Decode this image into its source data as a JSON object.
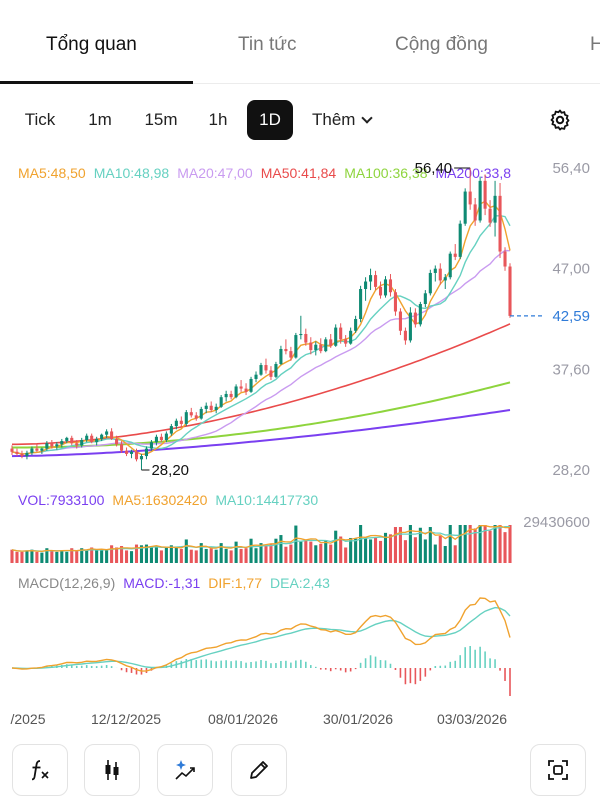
{
  "tabs": [
    {
      "label": "Tổng quan",
      "active": true
    },
    {
      "label": "Tin tức",
      "active": false
    },
    {
      "label": "Cộng đồng",
      "active": false
    },
    {
      "label": "H",
      "active": false
    }
  ],
  "timeframes": [
    {
      "label": "Tick",
      "active": false
    },
    {
      "label": "1m",
      "active": false
    },
    {
      "label": "15m",
      "active": false
    },
    {
      "label": "1h",
      "active": false
    },
    {
      "label": "1D",
      "active": true
    }
  ],
  "more_label": "Thêm",
  "icons": {
    "settings": "gear-icon",
    "tools": [
      "function-icon",
      "candlestick-icon",
      "sparkle-chart-icon",
      "pencil-icon",
      "fullscreen-icon"
    ]
  },
  "colors": {
    "up": "#0e8a73",
    "down": "#e8565a",
    "ma5": "#f0a22e",
    "ma10": "#66d1c1",
    "ma20": "#c99bf0",
    "ma50": "#e94b4b",
    "ma100": "#8ed43d",
    "ma200": "#7a3ff0",
    "last_price": "#2f7bd8"
  },
  "main_legend": [
    {
      "label": "MA5:48,50",
      "color": "#f0a22e"
    },
    {
      "label": "MA10:48,98",
      "color": "#66d1c1"
    },
    {
      "label": "MA20:47,00",
      "color": "#c99bf0"
    },
    {
      "label": "MA50:41,84",
      "color": "#e94b4b"
    },
    {
      "label": "MA100:36,38",
      "color": "#8ed43d"
    },
    {
      "label": "MA200:33,8",
      "color": "#7a3ff0"
    }
  ],
  "volume_legend": [
    {
      "label": "VOL:7933100",
      "color": "#7a3ff0"
    },
    {
      "label": "MA5:16302420",
      "color": "#f0a22e"
    },
    {
      "label": "MA10:14417730",
      "color": "#66d1c1"
    }
  ],
  "macd_legend": [
    {
      "label": "MACD(12,26,9)",
      "color": "#888888"
    },
    {
      "label": "MACD:-1,31",
      "color": "#7a3ff0"
    },
    {
      "label": "DIF:1,77",
      "color": "#f0a22e"
    },
    {
      "label": "DEA:2,43",
      "color": "#66d1c1"
    }
  ],
  "chart_data": {
    "type": "candlestick",
    "price_axis": {
      "ticks": [
        "56,40",
        "47,00",
        "37,60",
        "28,20"
      ],
      "range": [
        28.2,
        56.4
      ]
    },
    "volume_axis": {
      "ticks": [
        "29430600"
      ],
      "max": 29430600
    },
    "x_ticks": [
      "/2025",
      "12/12/2025",
      "08/01/2026",
      "30/01/2026",
      "03/03/2026"
    ],
    "high_label": "56,40",
    "low_label": "28,20",
    "last_price": "42,59",
    "last_price_value": 42.59,
    "candles": [
      [
        30.2,
        30.5,
        29.6,
        29.9
      ],
      [
        29.9,
        30.2,
        29.5,
        29.7
      ],
      [
        29.7,
        30.0,
        29.3,
        29.5
      ],
      [
        29.5,
        30.0,
        29.2,
        29.8
      ],
      [
        29.8,
        30.4,
        29.6,
        30.2
      ],
      [
        30.2,
        30.6,
        29.9,
        30.0
      ],
      [
        30.0,
        30.3,
        29.7,
        30.2
      ],
      [
        30.2,
        30.9,
        30.0,
        30.7
      ],
      [
        30.7,
        31.0,
        30.2,
        30.4
      ],
      [
        30.4,
        30.8,
        30.1,
        30.6
      ],
      [
        30.6,
        31.1,
        30.3,
        30.9
      ],
      [
        30.9,
        31.3,
        30.7,
        31.2
      ],
      [
        31.2,
        31.4,
        30.5,
        30.7
      ],
      [
        30.7,
        31.0,
        30.2,
        30.5
      ],
      [
        30.5,
        31.2,
        30.3,
        31.0
      ],
      [
        31.0,
        31.6,
        30.8,
        31.4
      ],
      [
        31.4,
        31.6,
        30.7,
        30.8
      ],
      [
        30.8,
        31.3,
        30.5,
        31.1
      ],
      [
        31.1,
        31.6,
        30.9,
        31.5
      ],
      [
        31.5,
        32.0,
        31.2,
        31.8
      ],
      [
        31.8,
        32.1,
        31.0,
        31.1
      ],
      [
        31.1,
        31.4,
        30.4,
        30.6
      ],
      [
        30.6,
        30.9,
        29.8,
        30.0
      ],
      [
        30.0,
        30.3,
        29.5,
        29.7
      ],
      [
        29.7,
        30.1,
        29.3,
        29.9
      ],
      [
        29.9,
        30.2,
        29.0,
        29.2
      ],
      [
        29.2,
        29.7,
        28.2,
        29.5
      ],
      [
        29.5,
        30.4,
        29.2,
        30.2
      ],
      [
        30.2,
        31.0,
        30.0,
        30.8
      ],
      [
        30.8,
        31.5,
        30.5,
        31.3
      ],
      [
        31.3,
        31.6,
        30.8,
        31.0
      ],
      [
        31.0,
        31.8,
        30.8,
        31.6
      ],
      [
        31.6,
        32.5,
        31.4,
        32.3
      ],
      [
        32.3,
        33.0,
        32.0,
        32.8
      ],
      [
        32.8,
        33.2,
        32.2,
        32.5
      ],
      [
        32.5,
        33.8,
        32.3,
        33.6
      ],
      [
        33.6,
        34.0,
        33.1,
        33.3
      ],
      [
        33.3,
        33.6,
        32.8,
        33.0
      ],
      [
        33.0,
        34.1,
        32.9,
        33.9
      ],
      [
        33.9,
        34.5,
        33.5,
        34.2
      ],
      [
        34.2,
        34.6,
        33.6,
        33.8
      ],
      [
        33.8,
        34.4,
        33.5,
        34.1
      ],
      [
        34.1,
        35.2,
        34.0,
        35.0
      ],
      [
        35.0,
        35.6,
        34.6,
        35.3
      ],
      [
        35.3,
        35.6,
        34.8,
        35.0
      ],
      [
        35.0,
        36.2,
        34.9,
        36.0
      ],
      [
        36.0,
        36.6,
        35.5,
        35.8
      ],
      [
        35.8,
        36.3,
        35.2,
        35.5
      ],
      [
        35.5,
        36.9,
        35.4,
        36.7
      ],
      [
        36.7,
        37.4,
        36.4,
        37.1
      ],
      [
        37.1,
        38.2,
        37.0,
        38.0
      ],
      [
        38.0,
        38.6,
        37.2,
        37.5
      ],
      [
        37.5,
        37.9,
        36.6,
        36.9
      ],
      [
        36.9,
        38.3,
        36.8,
        38.1
      ],
      [
        38.1,
        39.8,
        38.0,
        39.5
      ],
      [
        39.5,
        40.4,
        39.0,
        39.3
      ],
      [
        39.3,
        39.7,
        38.4,
        38.7
      ],
      [
        38.7,
        41.0,
        38.6,
        40.8
      ],
      [
        40.8,
        42.6,
        40.4,
        40.9
      ],
      [
        40.9,
        41.4,
        39.8,
        40.1
      ],
      [
        40.1,
        40.6,
        39.0,
        39.4
      ],
      [
        39.4,
        40.2,
        38.9,
        39.9
      ],
      [
        39.9,
        40.5,
        39.1,
        39.3
      ],
      [
        39.3,
        40.6,
        39.2,
        40.4
      ],
      [
        40.4,
        40.9,
        39.6,
        39.8
      ],
      [
        39.8,
        41.8,
        39.7,
        41.5
      ],
      [
        41.5,
        41.9,
        40.0,
        40.4
      ],
      [
        40.4,
        40.8,
        39.7,
        40.0
      ],
      [
        40.0,
        41.5,
        39.9,
        41.2
      ],
      [
        41.2,
        42.6,
        41.0,
        42.3
      ],
      [
        42.3,
        45.4,
        42.0,
        45.1
      ],
      [
        45.1,
        46.2,
        44.0,
        45.8
      ],
      [
        45.8,
        47.0,
        45.0,
        46.4
      ],
      [
        46.4,
        46.8,
        45.0,
        45.3
      ],
      [
        45.3,
        45.8,
        44.2,
        44.5
      ],
      [
        44.5,
        46.3,
        44.3,
        46.0
      ],
      [
        46.0,
        46.5,
        44.4,
        44.8
      ],
      [
        44.8,
        45.1,
        42.6,
        43.0
      ],
      [
        43.0,
        43.3,
        40.8,
        41.2
      ],
      [
        41.2,
        41.5,
        39.9,
        40.3
      ],
      [
        40.3,
        43.4,
        40.1,
        42.9
      ],
      [
        42.9,
        43.3,
        41.5,
        41.8
      ],
      [
        41.8,
        43.9,
        41.6,
        43.7
      ],
      [
        43.7,
        45.0,
        43.4,
        44.7
      ],
      [
        44.7,
        46.9,
        44.5,
        46.6
      ],
      [
        46.6,
        47.3,
        45.8,
        47.0
      ],
      [
        47.0,
        47.5,
        45.5,
        45.9
      ],
      [
        45.9,
        46.5,
        45.1,
        46.2
      ],
      [
        46.2,
        48.6,
        46.0,
        48.4
      ],
      [
        48.4,
        49.3,
        47.8,
        48.1
      ],
      [
        48.1,
        51.5,
        47.9,
        51.2
      ],
      [
        51.2,
        54.5,
        51.0,
        54.2
      ],
      [
        54.2,
        56.4,
        52.5,
        53.0
      ],
      [
        53.0,
        53.6,
        51.0,
        51.5
      ],
      [
        51.5,
        55.6,
        51.3,
        55.2
      ],
      [
        55.2,
        55.8,
        52.0,
        52.6
      ],
      [
        52.6,
        53.4,
        50.9,
        51.3
      ],
      [
        51.3,
        55.2,
        50.0,
        53.8
      ],
      [
        53.8,
        55.0,
        48.0,
        48.6
      ],
      [
        48.6,
        49.0,
        46.8,
        47.2
      ],
      [
        47.2,
        47.5,
        42.4,
        42.59
      ]
    ],
    "ma_end_values": {
      "ma5": 48.5,
      "ma10": 48.98,
      "ma20": 47.0,
      "ma50": 41.84,
      "ma100": 36.38,
      "ma200": 33.8
    },
    "ma_start_values": {
      "ma50": 30.6,
      "ma100": 30.3,
      "ma200": 29.5
    },
    "macd_end": {
      "macd": -1.31,
      "dif": 1.77,
      "dea": 2.43
    }
  }
}
